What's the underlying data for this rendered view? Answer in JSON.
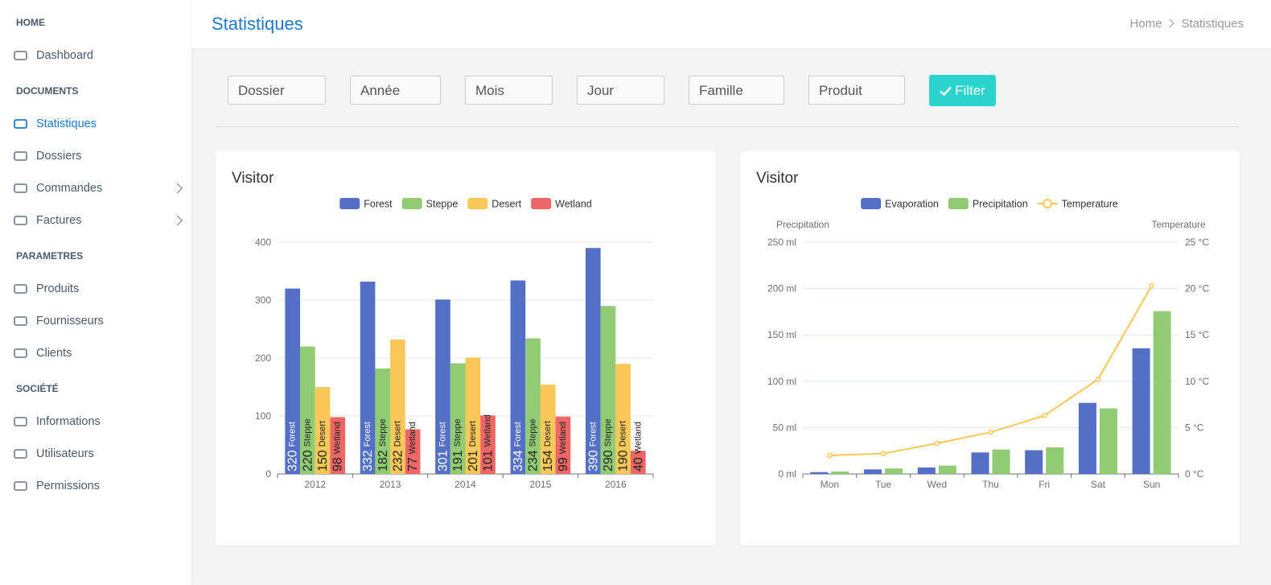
{
  "sidebar": {
    "sections": [
      {
        "title": "HOME",
        "items": [
          {
            "label": "Dashboard"
          }
        ]
      },
      {
        "title": "DOCUMENTS",
        "items": [
          {
            "label": "Statistiques",
            "active": true
          },
          {
            "label": "Dossiers"
          },
          {
            "label": "Commandes",
            "has_submenu": true
          },
          {
            "label": "Factures",
            "has_submenu": true
          }
        ]
      },
      {
        "title": "PARAMETRES",
        "items": [
          {
            "label": "Produits"
          },
          {
            "label": "Fournisseurs"
          },
          {
            "label": "Clients"
          }
        ]
      },
      {
        "title": "SOCIÉTÉ",
        "items": [
          {
            "label": "Informations"
          },
          {
            "label": "Utilisateurs"
          },
          {
            "label": "Permissions"
          }
        ]
      }
    ]
  },
  "header": {
    "title": "Statistiques",
    "breadcrumb": [
      "Home",
      "Statistiques"
    ]
  },
  "filters": {
    "fields": [
      "Dossier",
      "Année",
      "Mois",
      "Jour",
      "Famille",
      "Produit"
    ],
    "button": "Filter"
  },
  "chart_data": [
    {
      "type": "bar",
      "title": "Visitor",
      "categories": [
        "2012",
        "2013",
        "2014",
        "2015",
        "2016"
      ],
      "series": [
        {
          "name": "Forest",
          "color": "#5470c6",
          "values": [
            320,
            332,
            301,
            334,
            390
          ]
        },
        {
          "name": "Steppe",
          "color": "#91cc75",
          "values": [
            220,
            182,
            191,
            234,
            290
          ]
        },
        {
          "name": "Desert",
          "color": "#fac858",
          "values": [
            150,
            232,
            201,
            154,
            190
          ]
        },
        {
          "name": "Wetland",
          "color": "#ee6666",
          "values": [
            98,
            77,
            101,
            99,
            40
          ]
        }
      ],
      "ylim": [
        0,
        400
      ],
      "yticks": [
        0,
        100,
        200,
        300,
        400
      ],
      "grid": true,
      "show_labels": true,
      "legend": "top"
    },
    {
      "type": "bar",
      "title": "Visitor",
      "categories": [
        "Mon",
        "Tue",
        "Wed",
        "Thu",
        "Fri",
        "Sat",
        "Sun"
      ],
      "ylabel": "Precipitation",
      "y2label": "Temperature",
      "series": [
        {
          "name": "Evaporation",
          "color": "#5470c6",
          "values": [
            2.0,
            4.9,
            7.0,
            23.2,
            25.6,
            76.7,
            135.6
          ]
        },
        {
          "name": "Precipitation",
          "color": "#91cc75",
          "values": [
            2.6,
            5.9,
            9.0,
            26.4,
            28.7,
            70.7,
            175.6
          ]
        },
        {
          "name": "Temperature",
          "color": "#fac858",
          "type": "line",
          "axis": "y2",
          "values": [
            2.0,
            2.2,
            3.3,
            4.5,
            6.3,
            10.2,
            20.3
          ]
        }
      ],
      "ylim": [
        0,
        250
      ],
      "yticks": [
        {
          "value": 0,
          "label": "0 ml"
        },
        {
          "value": 50,
          "label": "50 ml"
        },
        {
          "value": 100,
          "label": "100 ml"
        },
        {
          "value": 150,
          "label": "150 ml"
        },
        {
          "value": 200,
          "label": "200 ml"
        },
        {
          "value": 250,
          "label": "250 ml"
        }
      ],
      "y2lim": [
        0,
        25
      ],
      "y2ticks": [
        {
          "value": 0,
          "label": "0 °C"
        },
        {
          "value": 5,
          "label": "5 °C"
        },
        {
          "value": 10,
          "label": "10 °C"
        },
        {
          "value": 15,
          "label": "15 °C"
        },
        {
          "value": 20,
          "label": "20 °C"
        },
        {
          "value": 25,
          "label": "25 °C"
        }
      ],
      "grid": true,
      "legend": "top"
    }
  ]
}
